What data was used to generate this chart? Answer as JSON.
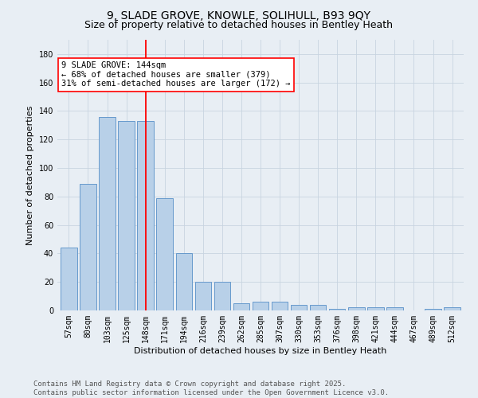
{
  "title1": "9, SLADE GROVE, KNOWLE, SOLIHULL, B93 9QY",
  "title2": "Size of property relative to detached houses in Bentley Heath",
  "xlabel": "Distribution of detached houses by size in Bentley Heath",
  "ylabel": "Number of detached properties",
  "categories": [
    "57sqm",
    "80sqm",
    "103sqm",
    "125sqm",
    "148sqm",
    "171sqm",
    "194sqm",
    "216sqm",
    "239sqm",
    "262sqm",
    "285sqm",
    "307sqm",
    "330sqm",
    "353sqm",
    "376sqm",
    "398sqm",
    "421sqm",
    "444sqm",
    "467sqm",
    "489sqm",
    "512sqm"
  ],
  "values": [
    44,
    89,
    136,
    133,
    133,
    79,
    40,
    20,
    20,
    5,
    6,
    6,
    4,
    4,
    1,
    2,
    2,
    2,
    0,
    1,
    2
  ],
  "bar_color": "#b8d0e8",
  "bar_edge_color": "#6699cc",
  "vline_x": 4,
  "vline_color": "red",
  "annotation_text": "9 SLADE GROVE: 144sqm\n← 68% of detached houses are smaller (379)\n31% of semi-detached houses are larger (172) →",
  "annotation_box_color": "white",
  "annotation_box_edge": "red",
  "ylim": [
    0,
    190
  ],
  "yticks": [
    0,
    20,
    40,
    60,
    80,
    100,
    120,
    140,
    160,
    180
  ],
  "background_color": "#e8eef4",
  "grid_color": "#c8d4e0",
  "footer": "Contains HM Land Registry data © Crown copyright and database right 2025.\nContains public sector information licensed under the Open Government Licence v3.0.",
  "title_fontsize": 10,
  "subtitle_fontsize": 9,
  "axis_label_fontsize": 8,
  "tick_fontsize": 7,
  "footer_fontsize": 6.5,
  "annotation_fontsize": 7.5
}
